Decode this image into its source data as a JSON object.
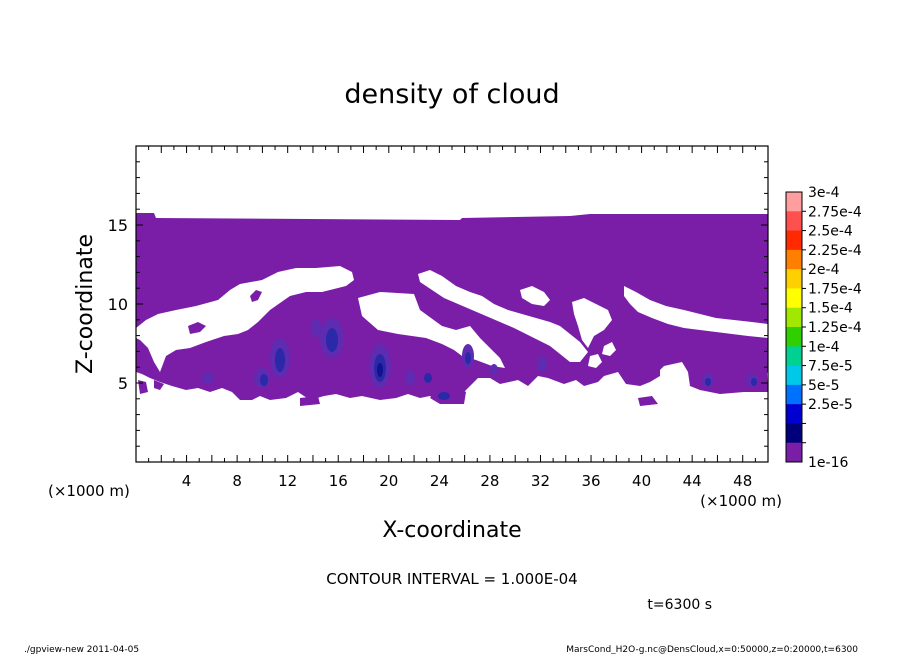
{
  "chart_data": {
    "type": "heatmap",
    "title": "density of cloud",
    "xlabel": "X-coordinate",
    "ylabel": "Z-coordinate",
    "x_unit_left": "(×1000 m)",
    "x_unit_right": "(×1000 m)",
    "xlim": [
      0,
      50
    ],
    "ylim": [
      0,
      20
    ],
    "xticks": [
      4,
      8,
      12,
      16,
      20,
      24,
      28,
      32,
      36,
      40,
      44,
      48
    ],
    "yticks": [
      5,
      10,
      15
    ],
    "contour_interval": "CONTOUR INTERVAL = 1.000E-04",
    "time_label": "t=6300 s",
    "colorbar": {
      "labels": [
        "3e-4",
        "2.75e-4",
        "2.5e-4",
        "2.25e-4",
        "2e-4",
        "1.75e-4",
        "1.5e-4",
        "1.25e-4",
        "1e-4",
        "7.5e-5",
        "5e-5",
        "2.5e-5",
        "1e-16"
      ],
      "colors": [
        "#ff9e9e",
        "#ff5050",
        "#ff2a00",
        "#ff7f00",
        "#ffd000",
        "#ffff00",
        "#a0e800",
        "#30d000",
        "#00d090",
        "#00c8e8",
        "#0070ff",
        "#0000d0",
        "#00007a",
        "#7a1ea8"
      ]
    },
    "fill_color": "#7a1ea8",
    "core_color": "#2a2aa8",
    "deep_core_color": "#121290"
  },
  "footer": {
    "left": "./gpview-new  2011-04-05",
    "right": "MarsCond_H2O-g.nc@DensCloud,x=0:50000,z=0:20000,t=6300"
  }
}
